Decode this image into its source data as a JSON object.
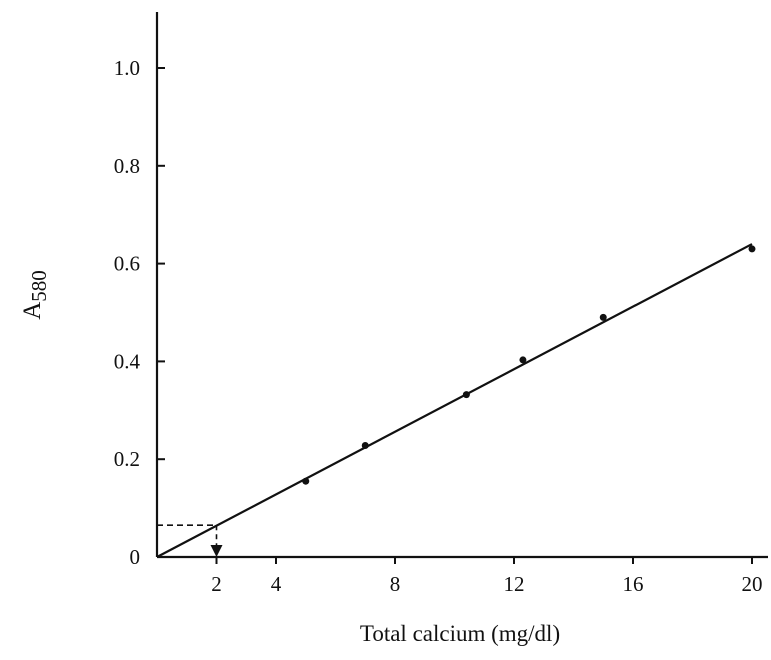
{
  "chart_data": {
    "type": "scatter",
    "title": "",
    "xlabel": "Total calcium (mg/dl)",
    "ylabel": {
      "main": "A",
      "subscript": "580"
    },
    "xlim": [
      0,
      20.5
    ],
    "ylim": [
      0,
      1.12
    ],
    "x_ticks": [
      {
        "value": 2,
        "label": "2"
      },
      {
        "value": 4,
        "label": "4"
      },
      {
        "value": 8,
        "label": "8"
      },
      {
        "value": 12,
        "label": "12"
      },
      {
        "value": 16,
        "label": "16"
      },
      {
        "value": 20,
        "label": "20"
      }
    ],
    "y_ticks": [
      {
        "value": 0,
        "label": "0"
      },
      {
        "value": 0.2,
        "label": "0.2"
      },
      {
        "value": 0.4,
        "label": "0.4"
      },
      {
        "value": 0.6,
        "label": "0.6"
      },
      {
        "value": 0.8,
        "label": "0.8"
      },
      {
        "value": 1.0,
        "label": "1.0"
      }
    ],
    "grid": false,
    "legend": "none",
    "series": [
      {
        "points": [
          {
            "x": 5.0,
            "y": 0.155
          },
          {
            "x": 7.0,
            "y": 0.228
          },
          {
            "x": 10.4,
            "y": 0.332
          },
          {
            "x": 12.3,
            "y": 0.403
          },
          {
            "x": 15.0,
            "y": 0.49
          },
          {
            "x": 20.0,
            "y": 0.63
          }
        ]
      }
    ],
    "fit_line": {
      "x": [
        0,
        20
      ],
      "y": [
        0,
        0.64
      ]
    },
    "reading_guide": {
      "x": 2,
      "y": 0.065,
      "style": "dashed",
      "arrow": "down"
    }
  }
}
